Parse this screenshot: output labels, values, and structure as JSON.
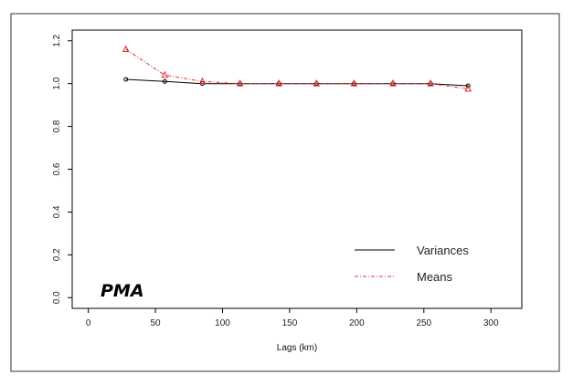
{
  "chart_data": {
    "type": "line",
    "title": "",
    "xlabel": "Lags (km)",
    "ylabel": "",
    "xlim": [
      -12,
      323
    ],
    "ylim": [
      -0.05,
      1.25
    ],
    "xticks": [
      0,
      50,
      100,
      150,
      200,
      250,
      300
    ],
    "xtick_labels": [
      "0",
      "50",
      "100",
      "150",
      "200",
      "250",
      "300"
    ],
    "yticks": [
      0.0,
      0.2,
      0.4,
      0.6,
      0.8,
      1.0,
      1.2
    ],
    "ytick_labels": [
      "0.0",
      "0.2",
      "0.4",
      "0.6",
      "0.8",
      "1.0",
      "1.2"
    ],
    "grid": false,
    "legend_position": "bottom-right",
    "annotation": "PMA",
    "series": [
      {
        "name": "Variances",
        "color": "#000000",
        "line_style": "solid",
        "marker": "circle",
        "x": [
          28,
          57,
          85,
          113,
          142,
          170,
          198,
          227,
          255,
          283
        ],
        "y": [
          1.02,
          1.01,
          1.0,
          1.0,
          1.0,
          1.0,
          1.0,
          1.0,
          1.0,
          0.99
        ]
      },
      {
        "name": "Means",
        "color": "#e03030",
        "line_style": "dash-dot",
        "marker": "triangle",
        "x": [
          28,
          57,
          85,
          113,
          142,
          170,
          198,
          227,
          255,
          283
        ],
        "y": [
          1.16,
          1.04,
          1.01,
          1.0,
          1.0,
          1.0,
          1.0,
          1.0,
          1.0,
          0.975
        ]
      }
    ]
  }
}
